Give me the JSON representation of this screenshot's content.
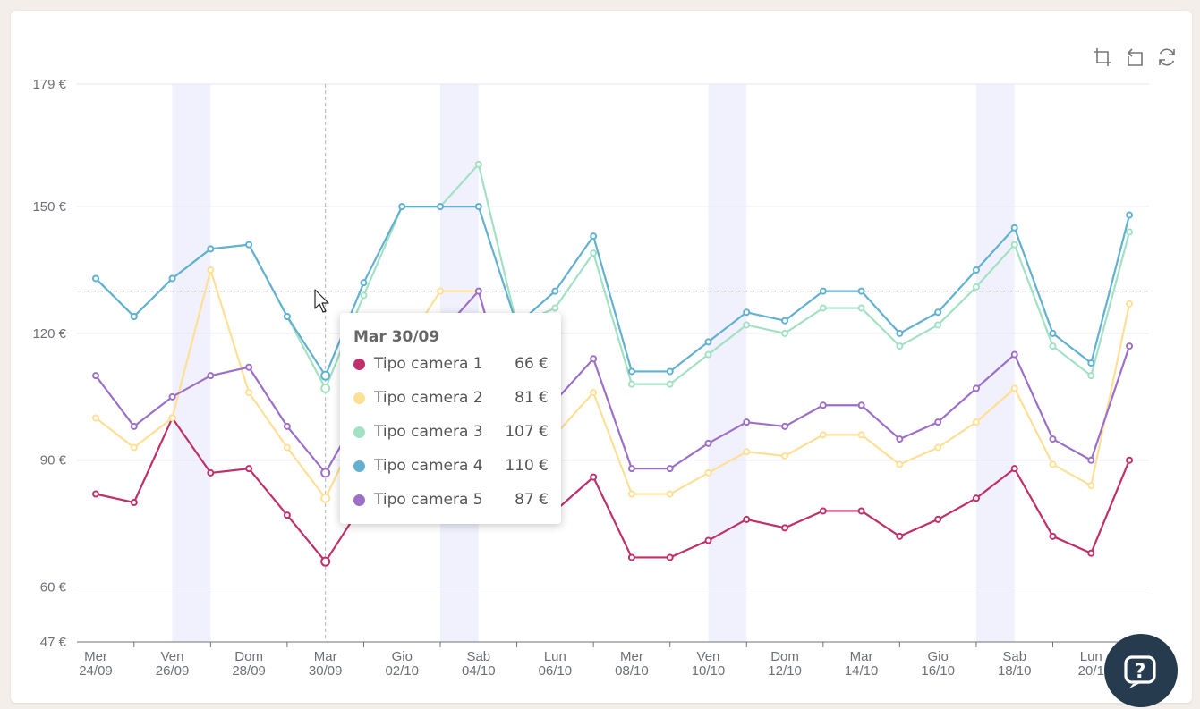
{
  "chart_data": {
    "type": "line",
    "y_tick_labels": [
      "179 €",
      "150 €",
      "120 €",
      "90 €",
      "60 €",
      "47 €"
    ],
    "y_ticks": [
      179,
      150,
      120,
      90,
      60,
      47
    ],
    "ylim": [
      47,
      179
    ],
    "x_tick_labels": [
      {
        "day": "Mer",
        "date": "24/09"
      },
      {
        "day": "Ven",
        "date": "26/09"
      },
      {
        "day": "Dom",
        "date": "28/09"
      },
      {
        "day": "Mar",
        "date": "30/09"
      },
      {
        "day": "Gio",
        "date": "02/10"
      },
      {
        "day": "Sab",
        "date": "04/10"
      },
      {
        "day": "Lun",
        "date": "06/10"
      },
      {
        "day": "Mer",
        "date": "08/10"
      },
      {
        "day": "Ven",
        "date": "10/10"
      },
      {
        "day": "Dom",
        "date": "12/10"
      },
      {
        "day": "Mar",
        "date": "14/10"
      },
      {
        "day": "Gio",
        "date": "16/10"
      },
      {
        "day": "Sab",
        "date": "18/10"
      },
      {
        "day": "Lun",
        "date": "20/1"
      }
    ],
    "x": [
      "24/09",
      "25/09",
      "26/09",
      "27/09",
      "28/09",
      "29/09",
      "30/09",
      "01/10",
      "02/10",
      "03/10",
      "04/10",
      "05/10",
      "06/10",
      "07/10",
      "08/10",
      "09/10",
      "10/10",
      "11/10",
      "12/10",
      "13/10",
      "14/10",
      "15/10",
      "16/10",
      "17/10",
      "18/10",
      "19/10",
      "20/10",
      "21/10"
    ],
    "weekend_bands": [
      [
        26,
        27
      ],
      [
        3,
        4
      ],
      [
        10,
        11
      ],
      [
        17,
        18
      ]
    ],
    "series": [
      {
        "name": "Tipo camera 1",
        "color": "#c0306a",
        "values": [
          82,
          80,
          100,
          87,
          88,
          77,
          66,
          80,
          94,
          96,
          97,
          78,
          78,
          86,
          67,
          67,
          71,
          76,
          74,
          78,
          78,
          72,
          76,
          81,
          88,
          72,
          68,
          90
        ]
      },
      {
        "name": "Tipo camera 2",
        "color": "#fde096",
        "values": [
          100,
          93,
          100,
          135,
          106,
          93,
          81,
          100,
          116,
          130,
          130,
          96,
          96,
          106,
          82,
          82,
          87,
          92,
          91,
          96,
          96,
          89,
          93,
          99,
          107,
          89,
          84,
          127
        ]
      },
      {
        "name": "Tipo camera 3",
        "color": "#a3e1c3",
        "values": [
          133,
          124,
          133,
          140,
          141,
          124,
          107,
          129,
          150,
          150,
          160,
          122,
          126,
          139,
          108,
          108,
          115,
          122,
          120,
          126,
          126,
          117,
          122,
          131,
          141,
          117,
          110,
          144
        ]
      },
      {
        "name": "Tipo camera 4",
        "color": "#62b1d0",
        "values": [
          133,
          124,
          133,
          140,
          141,
          124,
          110,
          132,
          150,
          150,
          150,
          122,
          130,
          143,
          111,
          111,
          118,
          125,
          123,
          130,
          130,
          120,
          125,
          135,
          145,
          120,
          113,
          148
        ]
      },
      {
        "name": "Tipo camera 5",
        "color": "#9d70c8",
        "values": [
          110,
          98,
          105,
          110,
          112,
          98,
          87,
          103,
          118,
          120,
          130,
          98,
          104,
          114,
          88,
          88,
          94,
          99,
          98,
          103,
          103,
          95,
          99,
          107,
          115,
          95,
          90,
          117
        ]
      }
    ],
    "hover": {
      "index": 6,
      "y_value": 130
    }
  },
  "tooltip": {
    "title": "Mar 30/09",
    "rows": [
      {
        "name": "Tipo camera 1",
        "value": "66 €",
        "color": "#c0306a"
      },
      {
        "name": "Tipo camera 2",
        "value": "81 €",
        "color": "#fde096"
      },
      {
        "name": "Tipo camera 3",
        "value": "107 €",
        "color": "#a3e1c3"
      },
      {
        "name": "Tipo camera 4",
        "value": "110 €",
        "color": "#62b1d0"
      },
      {
        "name": "Tipo camera 5",
        "value": "87 €",
        "color": "#9d70c8"
      }
    ]
  },
  "toolbar": {
    "icons": [
      "crop-zoom-icon",
      "zoom-reset-icon",
      "refresh-icon"
    ]
  },
  "help": {
    "icon": "help-chat-icon"
  },
  "colors": {
    "grid": "#e4e4f4",
    "band": "#f1f1fd",
    "axis": "#6e7079",
    "label": "#6e7079",
    "crosshair": "#b4b4b4"
  }
}
